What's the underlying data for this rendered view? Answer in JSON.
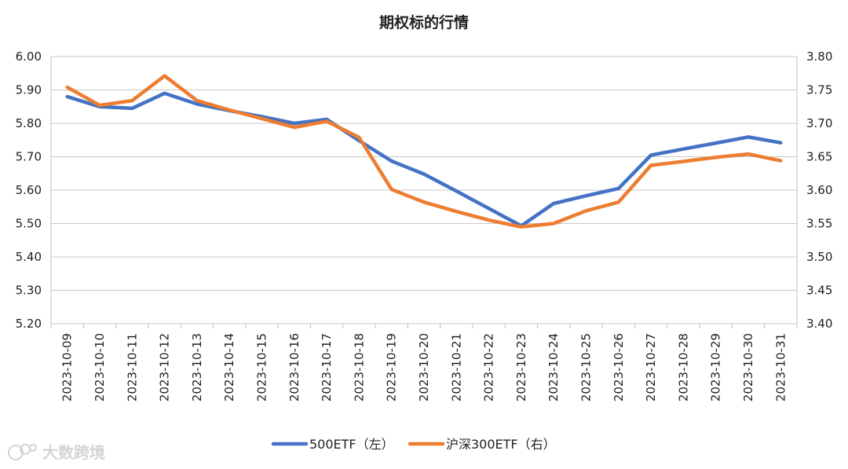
{
  "chart_data": {
    "type": "line",
    "title": "期权标的行情",
    "categories": [
      "2023-10-09",
      "2023-10-10",
      "2023-10-11",
      "2023-10-12",
      "2023-10-13",
      "2023-10-14",
      "2023-10-15",
      "2023-10-16",
      "2023-10-17",
      "2023-10-18",
      "2023-10-19",
      "2023-10-20",
      "2023-10-21",
      "2023-10-22",
      "2023-10-23",
      "2023-10-24",
      "2023-10-25",
      "2023-10-26",
      "2023-10-27",
      "2023-10-28",
      "2023-10-29",
      "2023-10-30",
      "2023-10-31"
    ],
    "y_left": {
      "min": 5.2,
      "max": 6.0,
      "step": 0.1,
      "ticks": [
        "5.20",
        "5.30",
        "5.40",
        "5.50",
        "5.60",
        "5.70",
        "5.80",
        "5.90",
        "6.00"
      ]
    },
    "y_right": {
      "min": 3.4,
      "max": 3.8,
      "step": 0.05,
      "ticks": [
        "3.40",
        "3.45",
        "3.50",
        "3.55",
        "3.60",
        "3.65",
        "3.70",
        "3.75",
        "3.80"
      ]
    },
    "grid": "horizontal",
    "legend_position": "bottom",
    "series": [
      {
        "name": "500ETF（左）",
        "axis": "left",
        "color": "#4472C4",
        "values": [
          5.88,
          5.85,
          5.845,
          5.89,
          5.858,
          5.838,
          5.82,
          5.8,
          5.812,
          5.748,
          5.687,
          5.648,
          5.597,
          5.545,
          5.493,
          5.56,
          5.583,
          5.605,
          5.705,
          5.723,
          5.741,
          5.759,
          5.742
        ]
      },
      {
        "name": "沪深300ETF（右）",
        "axis": "right",
        "color": "#ED7D31",
        "values": [
          3.754,
          3.727,
          3.734,
          3.771,
          3.734,
          3.72,
          3.707,
          3.694,
          3.703,
          3.679,
          3.601,
          3.582,
          3.568,
          3.555,
          3.545,
          3.55,
          3.569,
          3.582,
          3.637,
          3.643,
          3.649,
          3.654,
          3.644
        ]
      }
    ]
  },
  "watermark": {
    "text": "大数跨境",
    "icon": "watermark-logo-icon"
  }
}
